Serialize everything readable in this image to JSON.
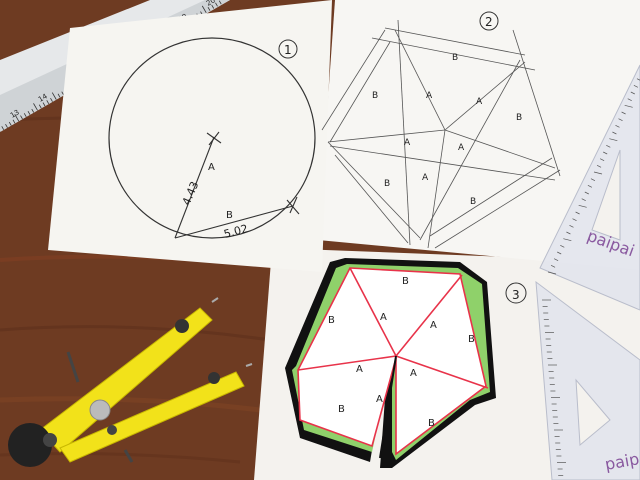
{
  "photo": {
    "subject": "geometry construction on paper",
    "colors": {
      "desk": "#6b3a22",
      "paper": "#f5f3ef",
      "fill_green": "#8fd16a",
      "line_red": "#e8334a",
      "compass": "#f2e21a",
      "ruler": "#e9ebec"
    }
  },
  "sheet1": {
    "step_number": "1",
    "radius_label": "4.43",
    "chord_label": "5.02",
    "letter_a": "A",
    "letter_b": "B"
  },
  "sheet2": {
    "step_number": "2",
    "labels": [
      "B",
      "B",
      "B",
      "B",
      "B",
      "A",
      "A",
      "A",
      "A",
      "A"
    ]
  },
  "sheet3": {
    "step_number": "3",
    "labels": [
      "B",
      "B",
      "B",
      "B",
      "B",
      "A",
      "A",
      "A",
      "A",
      "A"
    ]
  },
  "ruler": {
    "tick_numbers": [
      "13",
      "14",
      "15",
      "16",
      "17",
      "18",
      "19",
      "20"
    ]
  },
  "triangle_right": {
    "brand": "paipai"
  },
  "triangle_bottom": {
    "brand": "paipai"
  }
}
